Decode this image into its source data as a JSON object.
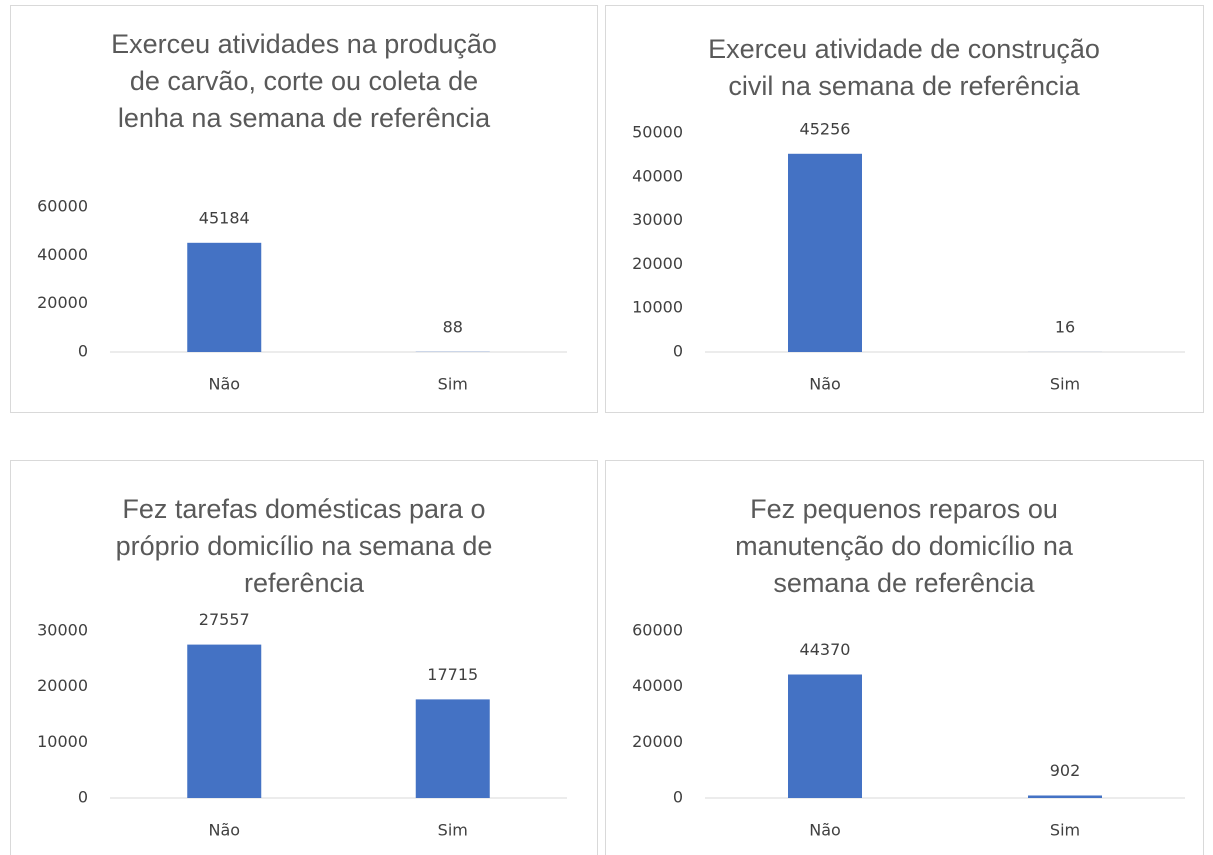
{
  "chart_data": [
    {
      "type": "bar",
      "title": "Exerceu atividades na produção de carvão, corte ou coleta de lenha na semana de referência",
      "categories": [
        "Não",
        "Sim"
      ],
      "values": [
        45184,
        88
      ],
      "color": "#4472c4",
      "ylim": [
        0,
        60000
      ],
      "yticks": [
        0,
        20000,
        40000,
        60000
      ]
    },
    {
      "type": "bar",
      "title": "Exerceu atividade de construção civil na semana de referência",
      "categories": [
        "Não",
        "Sim"
      ],
      "values": [
        45256,
        16
      ],
      "color": "#4472c4",
      "ylim": [
        0,
        50000
      ],
      "yticks": [
        0,
        10000,
        20000,
        30000,
        40000,
        50000
      ]
    },
    {
      "type": "bar",
      "title": "Fez tarefas domésticas para o próprio domicílio na semana de referência",
      "categories": [
        "Não",
        "Sim"
      ],
      "values": [
        27557,
        17715
      ],
      "color": "#4472c4",
      "ylim": [
        0,
        30000
      ],
      "yticks": [
        0,
        10000,
        20000,
        30000
      ]
    },
    {
      "type": "bar",
      "title": "Fez pequenos reparos ou manutenção do domicílio na semana de referência",
      "categories": [
        "Não",
        "Sim"
      ],
      "values": [
        44370,
        902
      ],
      "color": "#4472c4",
      "ylim": [
        0,
        60000
      ],
      "yticks": [
        0,
        20000,
        40000,
        60000
      ]
    }
  ]
}
